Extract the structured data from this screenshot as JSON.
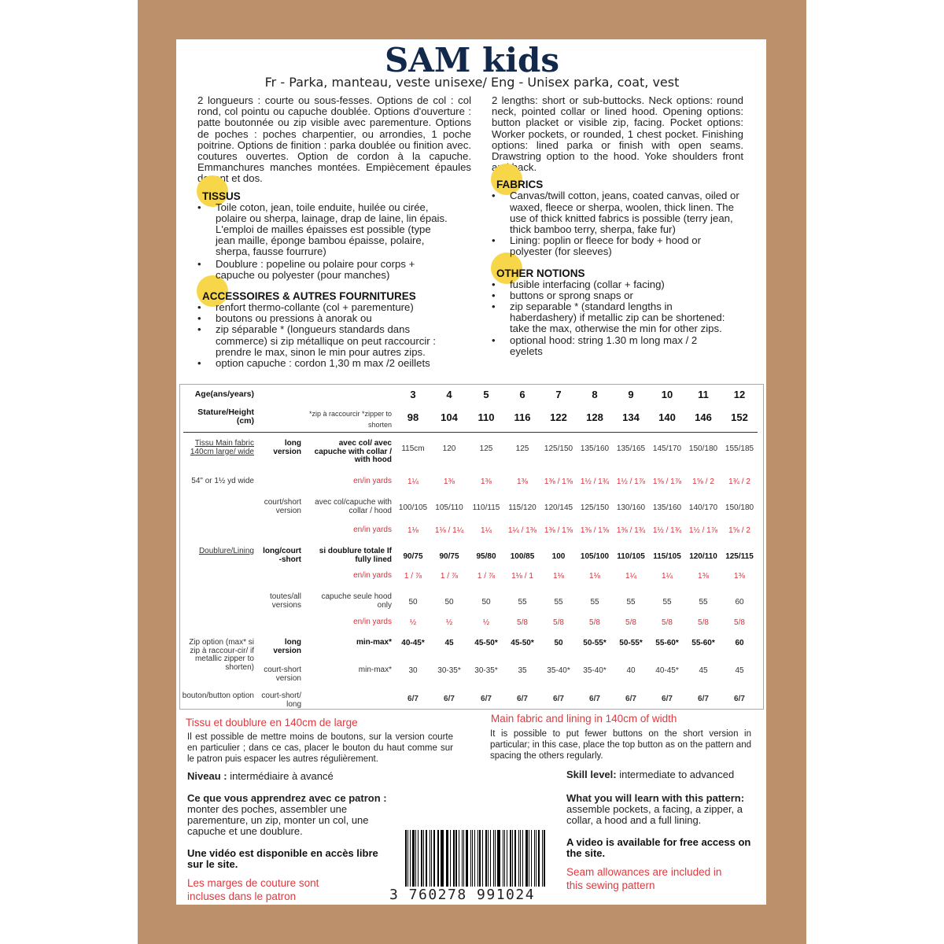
{
  "title": "SAM kids",
  "subtitle": "Fr - Parka, manteau, veste unisexe/ Eng - Unisex parka, coat, vest",
  "fr": {
    "intro": "2 longueurs : courte ou sous-fesses. Options de col : col rond, col pointu ou capuche doublée. Options d'ouverture : patte boutonnée ou zip visible avec parementure. Options de poches : poches charpentier, ou arrondies, 1 poche poitrine. Options de finition : parka doublée ou finition avec. coutures ouvertes. Option de cordon à la capuche. Emmanchures manches montées. Empiècement épaules devant et dos.",
    "fabric_heading": "TISSUS",
    "fabric_items": [
      "Toile coton, jean, toile enduite, huilée ou cirée, polaire ou sherpa, lainage, drap de laine, lin épais. L'emploi de mailles épaisses est possible (type jean maille, éponge bambou épaisse, polaire, sherpa, fausse fourrure)",
      "Doublure : popeline ou polaire pour corps + capuche ou polyester (pour manches)"
    ],
    "notions_heading": "ACCESSOIRES & AUTRES FOURNITURES",
    "notions_items": [
      "renfort thermo-collante (col + parementure)",
      "boutons ou pressions à anorak ou",
      "zip séparable * (longueurs standards dans commerce) si zip métallique on peut raccourcir : prendre le max, sinon le min pour autres zips.",
      "option capuche : cordon 1,30 m max /2 oeillets"
    ],
    "width_heading": "Tissu et doublure en 140cm de large",
    "buttons_note": "Il est possible de mettre moins de boutons, sur la version courte en particulier ; dans ce cas, placer le bouton du haut comme sur le patron puis espacer les autres régulièrement.",
    "level_label": "Niveau :",
    "level_value": " intermédiaire à avancé",
    "learn_label": "Ce que vous apprendrez avec ce patron :",
    "learn_text": "monter des poches, assembler une parementure, un zip, monter un col, une capuche et une doublure.",
    "video": "Une vidéo est disponible en accès libre sur le site.",
    "seam": "Les marges de couture sont incluses dans le patron"
  },
  "en": {
    "intro": "2 lengths: short or sub-buttocks. Neck options: round neck, pointed collar or lined hood. Opening options: button placket or visible zip, facing. Pocket options: Worker pockets, or rounded, 1 chest pocket. Finishing options: lined parka or finish with open seams. Drawstring option to the hood. Yoke shoulders front and back.",
    "fabric_heading": "FABRICS",
    "fabric_items": [
      "Canvas/twill cotton, jeans, coated canvas, oiled or waxed, fleece or sherpa, woolen, thick linen. The use of thick knitted fabrics is possible (terry jean, thick bamboo terry, sherpa, fake fur)",
      "Lining: poplin or fleece for body + hood or polyester (for sleeves)"
    ],
    "notions_heading": "OTHER NOTIONS",
    "notions_items": [
      "fusible interfacing (collar + facing)",
      "buttons or sprong snaps or",
      "zip separable * (standard lengths in haberdashery) if metallic zip can be shortened: take the max, otherwise the min for other zips.",
      "optional hood: string 1.30 m long max / 2 eyelets"
    ],
    "width_heading": "Main fabric and lining in 140cm of width",
    "buttons_note": "It is possible to put fewer buttons on the short version in particular; in this case, place the top button as on the pattern and spacing the others regularly.",
    "level_label": "Skill level:",
    "level_value": " intermediate to advanced",
    "learn_label": "What you will learn with this pattern:",
    "learn_text": "assemble pockets, a facing, a zipper, a collar, a hood and a full lining.",
    "video": "A video is available for free access on the site.",
    "seam": "Seam allowances are included in this sewing pattern"
  },
  "table": {
    "rows": [
      {
        "c1": "Age(ans/years)",
        "c2": "",
        "c3": "",
        "style": "big",
        "vals": [
          "3",
          "4",
          "5",
          "6",
          "7",
          "8",
          "9",
          "10",
          "11",
          "12"
        ]
      },
      {
        "c1": "Stature/Height (cm)",
        "c2": "",
        "c3": "*zip à raccourcir *zipper to shorten",
        "style": "bigger",
        "vals": [
          "98",
          "104",
          "110",
          "116",
          "122",
          "128",
          "134",
          "140",
          "146",
          "152"
        ]
      },
      {
        "c1": "Tissu Main fabric 140cm large/ wide",
        "c2": "long version",
        "c3": "avec col/ avec capuche with collar / with hood",
        "style": "",
        "vals": [
          "115cm",
          "120",
          "125",
          "125",
          "125/150",
          "135/160",
          "135/165",
          "145/170",
          "150/180",
          "155/185"
        ]
      },
      {
        "c1": "54\" or 1½ yd wide",
        "c2": "",
        "c3": "en/in yards",
        "style": "red",
        "vals": [
          "1¼",
          "1⅜",
          "1⅜",
          "1⅜",
          "1⅜ / 1⅝",
          "1½ / 1¾",
          "1½ / 1⅞",
          "1⅝ / 1⅞",
          "1⅝ / 2",
          "1¾ / 2"
        ]
      },
      {
        "c1": "",
        "c2": "court/short version",
        "c3": "avec col/capuche with collar / hood",
        "style": "",
        "vals": [
          "100/105",
          "105/110",
          "110/115",
          "115/120",
          "120/145",
          "125/150",
          "130/160",
          "135/160",
          "140/170",
          "150/180"
        ]
      },
      {
        "c1": "",
        "c2": "",
        "c3": "en/in yards",
        "style": "red",
        "vals": [
          "1⅛",
          "1⅛ / 1¼",
          "1¼",
          "1¼ / 1⅜",
          "1⅜ / 1⅝",
          "1⅜ / 1⅝",
          "1⅜ / 1¾",
          "1½ / 1¾",
          "1½ / 1⅞",
          "1⅝ / 2"
        ]
      },
      {
        "c1": "Doublure/Lining",
        "c2": "long/court -short",
        "c3": "si doublure totale If fully lined",
        "style": "bold",
        "vals": [
          "90/75",
          "90/75",
          "95/80",
          "100/85",
          "100",
          "105/100",
          "110/105",
          "115/105",
          "120/110",
          "125/115"
        ]
      },
      {
        "c1": "",
        "c2": "",
        "c3": "en/in yards",
        "style": "red",
        "vals": [
          "1 / ⅞",
          "1 / ⅞",
          "1 / ⅞",
          "1⅛ / 1",
          "1⅛",
          "1⅛",
          "1¼",
          "1¼",
          "1⅜",
          "1⅜"
        ]
      },
      {
        "c1": "",
        "c2": "toutes/all versions",
        "c3": "capuche seule hood only",
        "style": "",
        "vals": [
          "50",
          "50",
          "50",
          "55",
          "55",
          "55",
          "55",
          "55",
          "55",
          "60"
        ]
      },
      {
        "c1": "",
        "c2": "",
        "c3": "en/in yards",
        "style": "red",
        "vals": [
          "½",
          "½",
          "½",
          "5/8",
          "5/8",
          "5/8",
          "5/8",
          "5/8",
          "5/8",
          "5/8"
        ]
      },
      {
        "c1": "Zip option (max* si zip à raccour-cir/ if metallic zipper to shorten)",
        "c2": "long version",
        "c3": "min-max*",
        "style": "bold",
        "vals": [
          "40-45*",
          "45",
          "45-50*",
          "45-50*",
          "50",
          "50-55*",
          "50-55*",
          "55-60*",
          "55-60*",
          "60"
        ]
      },
      {
        "c1": "",
        "c2": "court-short version",
        "c3": "min-max*",
        "style": "",
        "vals": [
          "30",
          "30-35*",
          "30-35*",
          "35",
          "35-40*",
          "35-40*",
          "40",
          "40-45*",
          "45",
          "45"
        ]
      },
      {
        "c1": "bouton/button option",
        "c2": "court-short/ long",
        "c3": "",
        "style": "",
        "vals": [
          "6/7",
          "6/7",
          "6/7",
          "6/7",
          "6/7",
          "6/7",
          "6/7",
          "6/7",
          "6/7",
          "6/7"
        ]
      }
    ]
  },
  "barcode": "3 760278 991024",
  "colors": {
    "kraft": "#bb906b",
    "title": "#13294b",
    "highlight": "#f7d64a",
    "accent_red": "#e0393e"
  }
}
